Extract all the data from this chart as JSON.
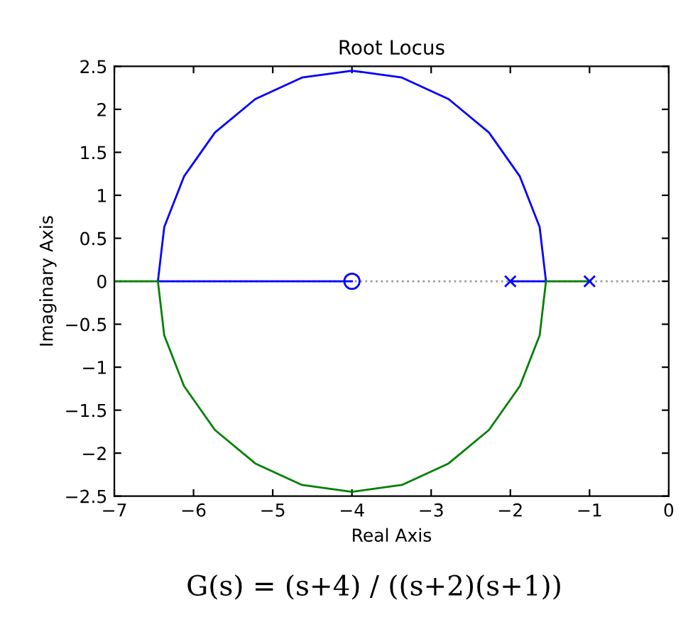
{
  "chart_data": {
    "type": "line",
    "title": "Root Locus",
    "xlabel": "Real Axis",
    "ylabel": "Imaginary Axis",
    "xlim": [
      -7,
      0
    ],
    "xticks": [
      -7,
      -6,
      -5,
      -4,
      -3,
      -2,
      -1,
      0
    ],
    "ylim": [
      -2.5,
      2.5
    ],
    "yticks": [
      -2.5,
      -2,
      -1.5,
      -1,
      -0.5,
      0,
      0.5,
      1,
      1.5,
      2,
      2.5
    ],
    "grid": false,
    "ref_lines": [
      {
        "axis": "y",
        "value": 0,
        "color": "#999999",
        "line_style": "dotted"
      }
    ],
    "series": [
      {
        "color": "#0000ff",
        "x": [
          -2,
          -1.55,
          -1.63,
          -1.88,
          -2.27,
          -2.78,
          -3.37,
          -4,
          -4.63,
          -5.22,
          -5.73,
          -6.12,
          -6.37,
          -6.45,
          -4
        ],
        "values": [
          0,
          0,
          0.63,
          1.22,
          1.73,
          2.12,
          2.37,
          2.45,
          2.37,
          2.12,
          1.73,
          1.22,
          0.63,
          0,
          0
        ]
      },
      {
        "color": "#008000",
        "x": [
          -1,
          -1.55,
          -1.63,
          -1.88,
          -2.27,
          -2.78,
          -3.37,
          -4,
          -4.63,
          -5.22,
          -5.73,
          -6.12,
          -6.37,
          -6.45,
          -7
        ],
        "values": [
          0,
          0,
          -0.63,
          -1.22,
          -1.73,
          -2.12,
          -2.37,
          -2.45,
          -2.37,
          -2.12,
          -1.73,
          -1.22,
          -0.63,
          0,
          0
        ]
      },
      {
        "type": "scatter",
        "color": "#0000ff",
        "marker": "cross",
        "x": [
          -2,
          -1
        ],
        "values": [
          0,
          0
        ]
      },
      {
        "type": "scatter",
        "color": "#0000ff",
        "marker": "circle",
        "x": [
          -4
        ],
        "values": [
          0
        ]
      }
    ],
    "annotations": [
      "G(s) = (s+4) / ((s+2)(s+1))"
    ]
  }
}
